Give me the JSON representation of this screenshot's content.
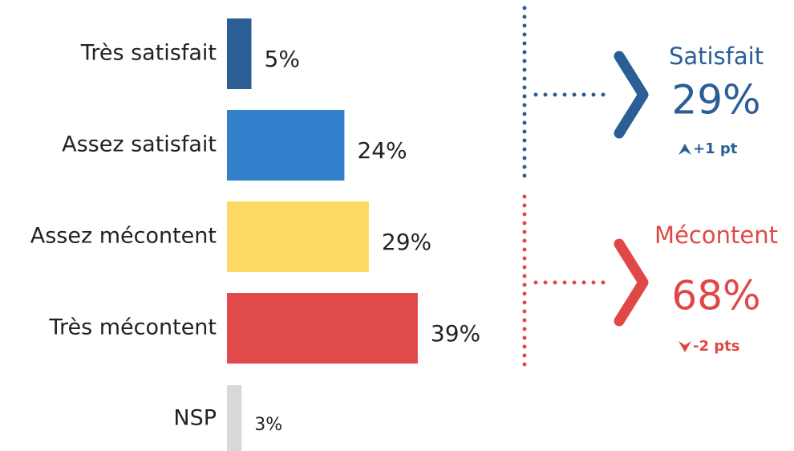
{
  "chart_data": {
    "type": "barh",
    "categories": [
      "Très satisfait",
      "Assez satisfait",
      "Assez mécontent",
      "Très mécontent",
      "NSP"
    ],
    "values": [
      5,
      24,
      29,
      39,
      3
    ],
    "value_labels": [
      "5%",
      "24%",
      "29%",
      "39%",
      "3%"
    ],
    "colors": [
      "#2a5e95",
      "#3380cc",
      "#fdd966",
      "#e04a4a",
      "#d9d9d9"
    ],
    "summary": [
      {
        "label": "Satisfait",
        "value_label": "29%",
        "change": "+1 pt",
        "color": "#2a5e95",
        "direction": "up"
      },
      {
        "label": "Mécontent",
        "value_label": "68%",
        "change": "-2 pts",
        "color": "#e04848",
        "direction": "down"
      }
    ]
  }
}
